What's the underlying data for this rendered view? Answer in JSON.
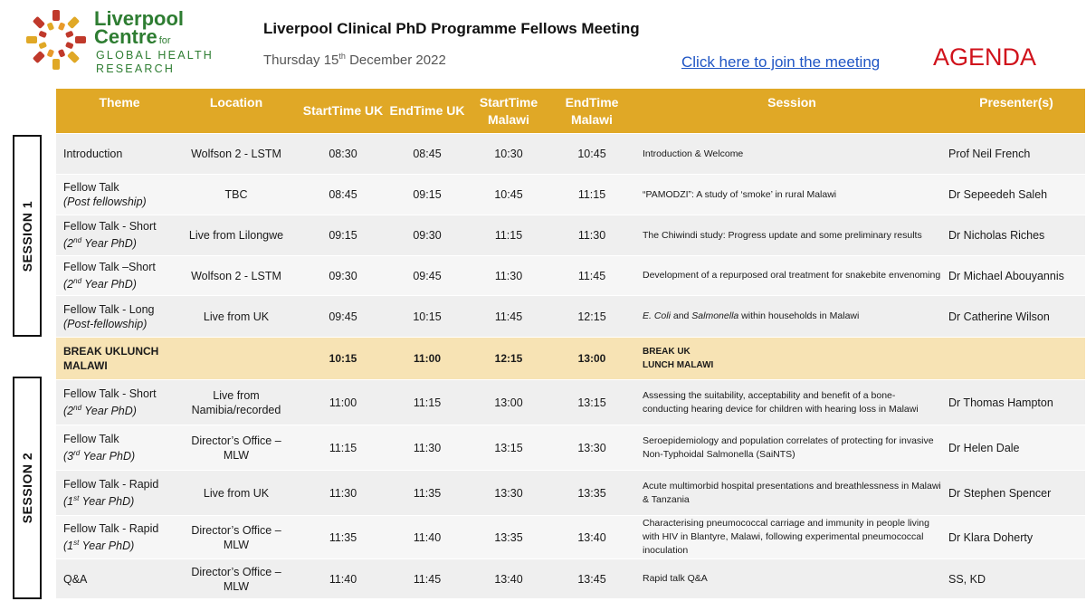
{
  "header": {
    "logo_lines": [
      "Liverpool",
      "Centre",
      "for",
      "GLOBAL HEALTH",
      "RESEARCH"
    ],
    "title": "Liverpool Clinical  PhD Programme Fellows Meeting",
    "date_prefix": "Thursday 15",
    "date_sup": "th",
    "date_suffix": " December 2022",
    "join_link": "Click here to join the meeting",
    "agenda_label": "AGENDA"
  },
  "columns": {
    "theme": "Theme",
    "location": "Location",
    "start_uk": "StartTime UK",
    "end_uk": "EndTime UK",
    "start_malawi": "StartTime Malawi",
    "end_malawi": "EndTime Malawi",
    "session": "Session",
    "presenters": "Presenter(s)"
  },
  "sessions": [
    "SESSION 1",
    "SESSION 2"
  ],
  "rows": [
    {
      "theme": "Introduction",
      "theme_sub": "",
      "location": "Wolfson 2 - LSTM",
      "start_uk": "08:30",
      "end_uk": "08:45",
      "start_malawi": "10:30",
      "end_malawi": "10:45",
      "session": "Introduction & Welcome",
      "presenter": "Prof Neil French"
    },
    {
      "theme": "Fellow Talk",
      "theme_sub": "(Post fellowship)",
      "location": "TBC",
      "start_uk": "08:45",
      "end_uk": "09:15",
      "start_malawi": "10:45",
      "end_malawi": "11:15",
      "session": "“PAMODZI”:  A study of ‘smoke’ in rural Malawi",
      "presenter": "Dr Sepeedeh Saleh"
    },
    {
      "theme": "Fellow Talk - Short",
      "theme_sub": "(2nd Year PhD)",
      "location": "Live from Lilongwe",
      "start_uk": "09:15",
      "end_uk": "09:30",
      "start_malawi": "11:15",
      "end_malawi": "11:30",
      "session": "The Chiwindi study: Progress update and some preliminary results",
      "presenter": "Dr Nicholas Riches"
    },
    {
      "theme": "Fellow Talk –Short",
      "theme_sub": "(2nd Year PhD)",
      "location": "Wolfson 2 - LSTM",
      "start_uk": "09:30",
      "end_uk": "09:45",
      "start_malawi": "11:30",
      "end_malawi": "11:45",
      "session": "Development  of  a repurposed oral treatment  for snakebite envenoming",
      "presenter": "Dr Michael Abouyannis"
    },
    {
      "theme": "Fellow Talk - Long",
      "theme_sub": "(Post-fellowship)",
      "location": "Live from UK",
      "start_uk": "09:45",
      "end_uk": "10:15",
      "start_malawi": "11:45",
      "end_malawi": "12:15",
      "session_italic_1": "E. Coli",
      "session_mid": " and ",
      "session_italic_2": "Salmonella",
      "session_tail": " within households in Malawi",
      "presenter": "Dr Catherine Wilson"
    },
    {
      "theme": "BREAK UK",
      "theme_sub": "LUNCH MALAWI",
      "location": "",
      "start_uk": "10:15",
      "end_uk": "11:00",
      "start_malawi": "12:15",
      "end_malawi": "13:00",
      "session": "BREAK  UK",
      "session_2": "LUNCH MALAWI",
      "presenter": ""
    },
    {
      "theme": "Fellow Talk - Short",
      "theme_sub": "(2nd Year PhD)",
      "location": "Live from Namibia/recorded",
      "start_uk": "11:00",
      "end_uk": "11:15",
      "start_malawi": "13:00",
      "end_malawi": "13:15",
      "session": "Assessing the suitability, acceptability and benefit of a bone-conducting hearing device for children with hearing loss in Malawi",
      "presenter": "Dr Thomas Hampton"
    },
    {
      "theme": "Fellow Talk",
      "theme_sub": "(3rd Year PhD)",
      "location": "Director’s Office – MLW",
      "start_uk": "11:15",
      "end_uk": "11:30",
      "start_malawi": "13:15",
      "end_malawi": "13:30",
      "session": "Seroepidemiology and population correlates of protecting for invasive Non-Typhoidal Salmonella (SaiNTS)",
      "presenter": "Dr Helen Dale"
    },
    {
      "theme": "Fellow Talk - Rapid",
      "theme_sub": "(1st Year PhD)",
      "location": "Live from UK",
      "start_uk": "11:30",
      "end_uk": "11:35",
      "start_malawi": "13:30",
      "end_malawi": "13:35",
      "session": "Acute multimorbid hospital presentations and breathlessness in Malawi & Tanzania",
      "presenter": "Dr Stephen Spencer"
    },
    {
      "theme": "Fellow Talk - Rapid",
      "theme_sub": "(1st Year PhD)",
      "location": "Director’s Office – MLW",
      "start_uk": "11:35",
      "end_uk": "11:40",
      "start_malawi": "13:35",
      "end_malawi": "13:40",
      "session": "Characterising pneumococcal carriage and immunity in people living with HIV in Blantyre, Malawi, following experimental pneumococcal inoculation",
      "presenter": "Dr Klara Doherty"
    },
    {
      "theme": "Q&A",
      "theme_sub": "",
      "location": "Director’s Office – MLW",
      "start_uk": "11:40",
      "end_uk": "11:45",
      "start_malawi": "13:40",
      "end_malawi": "13:45",
      "session": "Rapid talk Q&A",
      "presenter": "SS, KD"
    }
  ],
  "colors": {
    "header_gold": "#e0a826",
    "break_row": "#f7e3b4",
    "link_blue": "#1f55c4",
    "agenda_red": "#d0121b",
    "logo_green": "#2e7d32"
  }
}
